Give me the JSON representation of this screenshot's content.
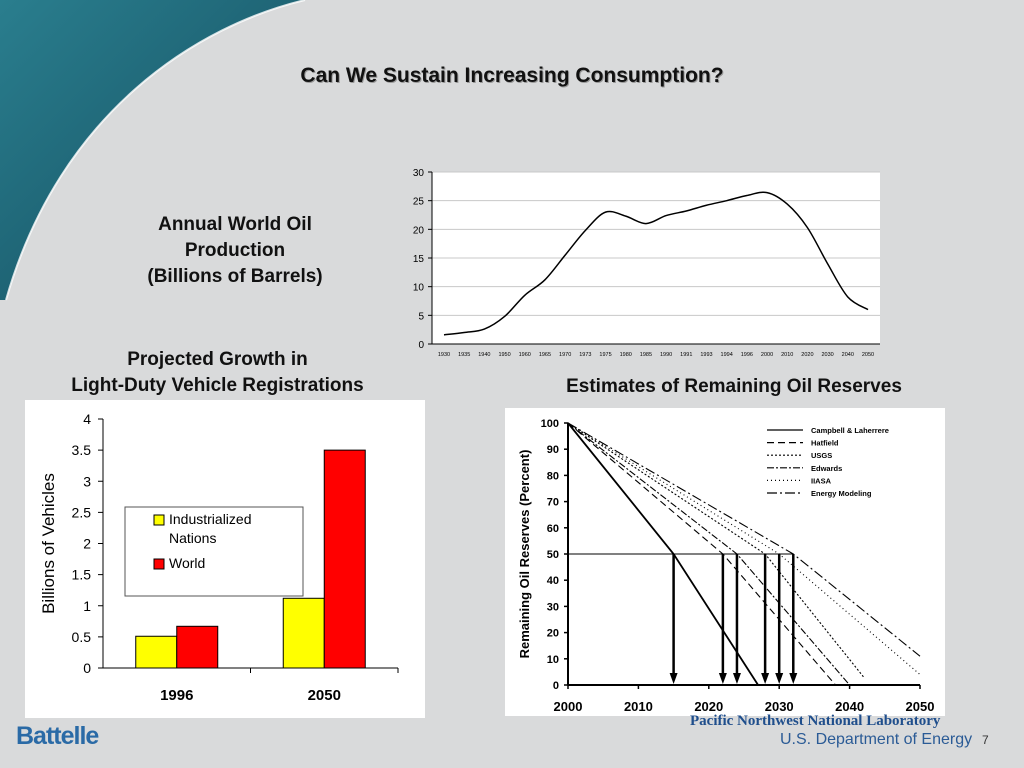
{
  "slide": {
    "title": "Can We Sustain Increasing Consumption?",
    "caption_production": [
      "Annual World Oil",
      "Production",
      "(Billions of Barrels)"
    ],
    "caption_vehicles": [
      "Projected Growth in",
      "Light-Duty Vehicle Registrations"
    ],
    "caption_reserves": "Estimates of Remaining Oil Reserves",
    "battelle": "Battelle",
    "lab_name": "Pacific Northwest National Laboratory",
    "doe": "U.S. Department of Energy",
    "page_number": "7"
  },
  "colors": {
    "industrialized": "#ffff00",
    "world": "#ff0000",
    "background": "#d9dadb",
    "swoosh": "#1c6f80"
  },
  "chart_data": [
    {
      "type": "line",
      "ylim": [
        0,
        30
      ],
      "y_ticks": [
        "0",
        "5",
        "10",
        "15",
        "20",
        "25",
        "30"
      ],
      "categories": [
        "1930",
        "1935",
        "1940",
        "1950",
        "1960",
        "1965",
        "1970",
        "1973",
        "1975",
        "1980",
        "1985",
        "1990",
        "1991",
        "1993",
        "1994",
        "1996",
        "2000",
        "2010",
        "2020",
        "2030",
        "2040",
        "2050"
      ],
      "values": [
        1.6,
        2.0,
        2.6,
        4.8,
        8.5,
        11.2,
        15.5,
        19.8,
        23.0,
        22.3,
        21.0,
        22.4,
        23.2,
        24.2,
        25.0,
        25.9,
        26.4,
        24.4,
        20.3,
        14.0,
        8.2,
        6.0
      ],
      "grid": true
    },
    {
      "type": "bar",
      "ylabel": "Billions of Vehicles",
      "ylim": [
        0,
        4
      ],
      "y_ticks": [
        "0",
        "0.5",
        "1",
        "1.5",
        "2",
        "2.5",
        "3",
        "3.5",
        "4"
      ],
      "categories": [
        "1996",
        "2050"
      ],
      "series": [
        {
          "name": "Industrialized Nations",
          "values": [
            0.51,
            1.12
          ]
        },
        {
          "name": "World",
          "values": [
            0.67,
            3.5
          ]
        }
      ],
      "legend_lines": [
        [
          "Industrialized",
          "Nations"
        ],
        [
          "World"
        ]
      ],
      "legend": "center-left"
    },
    {
      "type": "line",
      "ylabel": "Remaining Oil Reserves (Percent)",
      "ylim": [
        0,
        100
      ],
      "xlim": [
        2000,
        2050
      ],
      "y_ticks": [
        "0",
        "10",
        "20",
        "30",
        "40",
        "50",
        "60",
        "70",
        "80",
        "90",
        "100"
      ],
      "x_ticks": [
        "2000",
        "2010",
        "2020",
        "2030",
        "2040",
        "2050"
      ],
      "series": [
        {
          "name": "Campbell & Laherrere",
          "dash": "",
          "x": [
            2000,
            2015,
            2027
          ],
          "y": [
            100,
            50,
            0
          ]
        },
        {
          "name": "Hatfield",
          "dash": "7,4",
          "x": [
            2000,
            2022,
            2038
          ],
          "y": [
            100,
            50,
            0
          ]
        },
        {
          "name": "USGS",
          "dash": "2,2",
          "x": [
            2000,
            2028,
            2042
          ],
          "y": [
            100,
            50,
            3
          ]
        },
        {
          "name": "Edwards",
          "dash": "7,2,2,2",
          "x": [
            2000,
            2024,
            2040
          ],
          "y": [
            100,
            50,
            0
          ]
        },
        {
          "name": "IIASA",
          "dash": "1,3",
          "x": [
            2000,
            2030,
            2050
          ],
          "y": [
            100,
            50,
            4
          ]
        },
        {
          "name": "Energy Modeling",
          "dash": "10,3,2,3",
          "x": [
            2000,
            2032,
            2050
          ],
          "y": [
            100,
            50,
            11
          ]
        }
      ],
      "reference_y": 50,
      "arrows_x": [
        2015,
        2022,
        2024,
        2028,
        2030,
        2032
      ],
      "legend": "top-right"
    }
  ]
}
